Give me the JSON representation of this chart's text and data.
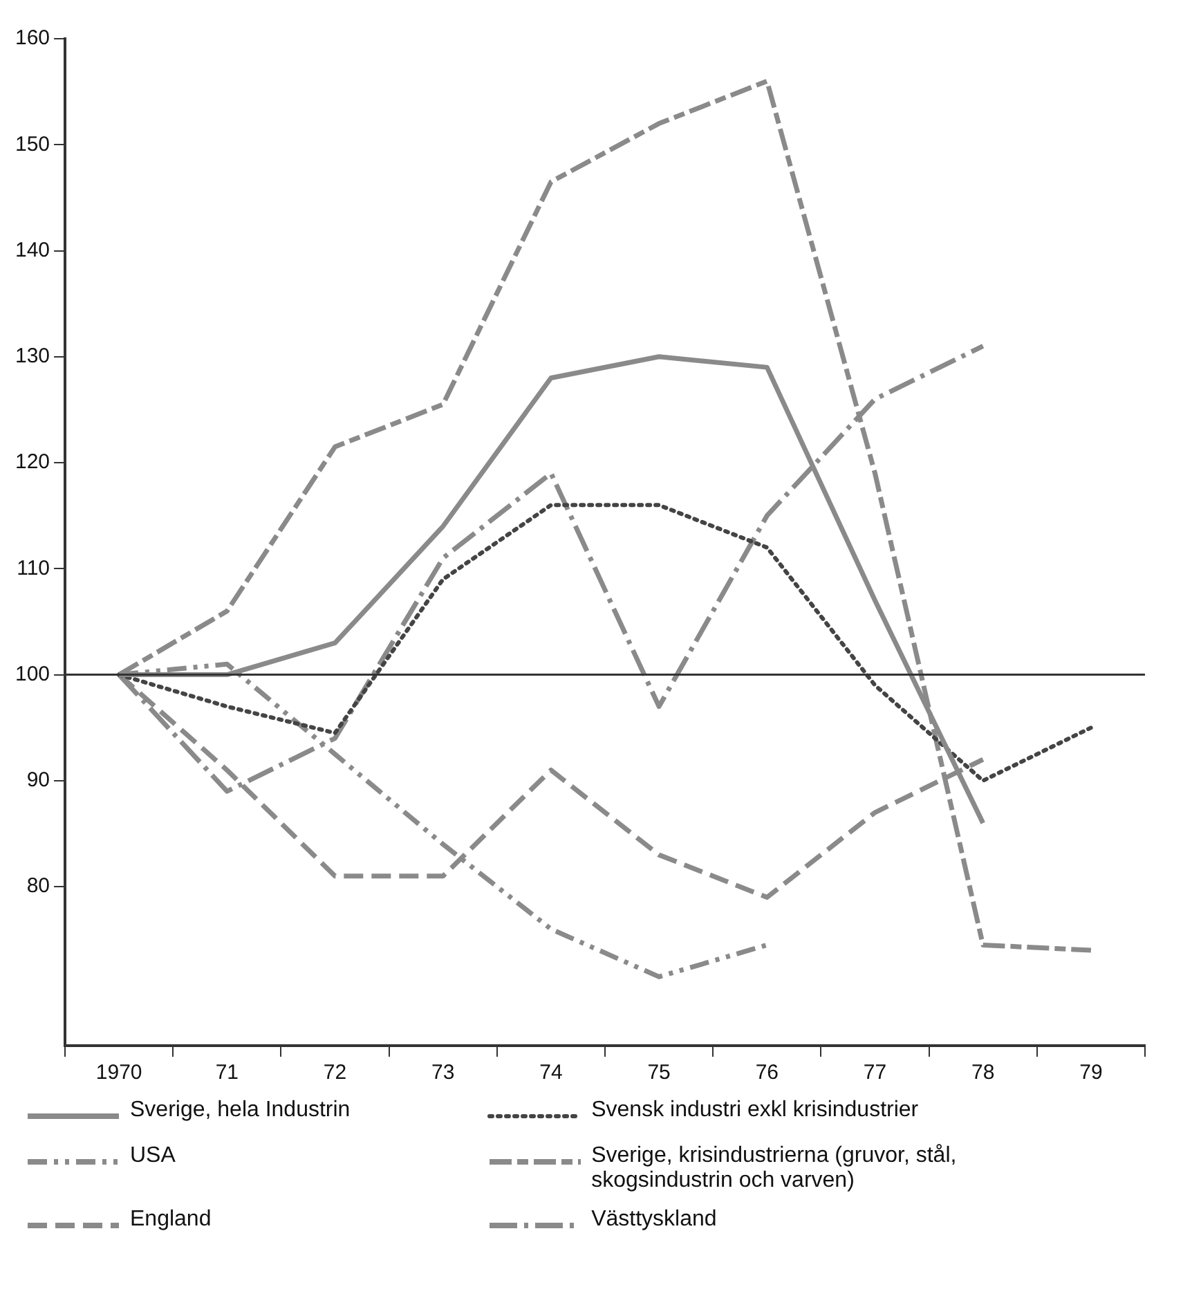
{
  "chart_data": {
    "type": "line",
    "categories": [
      "1970",
      "71",
      "72",
      "73",
      "74",
      "75",
      "76",
      "77",
      "78",
      "79"
    ],
    "ylim": [
      65,
      160
    ],
    "yticks": [
      80,
      90,
      100,
      110,
      120,
      130,
      140,
      150,
      160
    ],
    "legend": "bottom",
    "ref_lines": [
      {
        "axis": "y",
        "value": 100,
        "color": "#333333"
      }
    ],
    "series": [
      {
        "name": "Sverige, hela Industrin",
        "color": "#8a8a8a",
        "line_style": "solid",
        "values": [
          100,
          100,
          103,
          114,
          128,
          130,
          129,
          107,
          86,
          null
        ]
      },
      {
        "name": "Svensk industri exkl krisindustrier",
        "color": "#444444",
        "line_style": "dotted",
        "values": [
          100,
          97,
          94.5,
          109,
          116,
          116,
          112,
          99,
          90,
          95
        ]
      },
      {
        "name": "USA",
        "color": "#8a8a8a",
        "line_style": "dashed",
        "values": [
          100,
          101,
          92.5,
          84,
          76,
          71.5,
          74.5,
          null,
          null,
          null
        ]
      },
      {
        "name": "Sverige, krisindustrierna (gruvor, stål, skogsindustrin och varven)",
        "color": "#8a8a8a",
        "line_style": "dashed",
        "values": [
          100,
          106,
          121.5,
          125.5,
          146.5,
          152,
          156,
          119,
          74.5,
          74
        ]
      },
      {
        "name": "England",
        "color": "#8a8a8a",
        "line_style": "dashed",
        "values": [
          100,
          91,
          81,
          81,
          91,
          83,
          79,
          87,
          92,
          null
        ]
      },
      {
        "name": "Västtyskland",
        "color": "#8a8a8a",
        "line_style": "dashed",
        "values": [
          100,
          89,
          94,
          111,
          119,
          97,
          115,
          126,
          131,
          null
        ]
      }
    ]
  }
}
